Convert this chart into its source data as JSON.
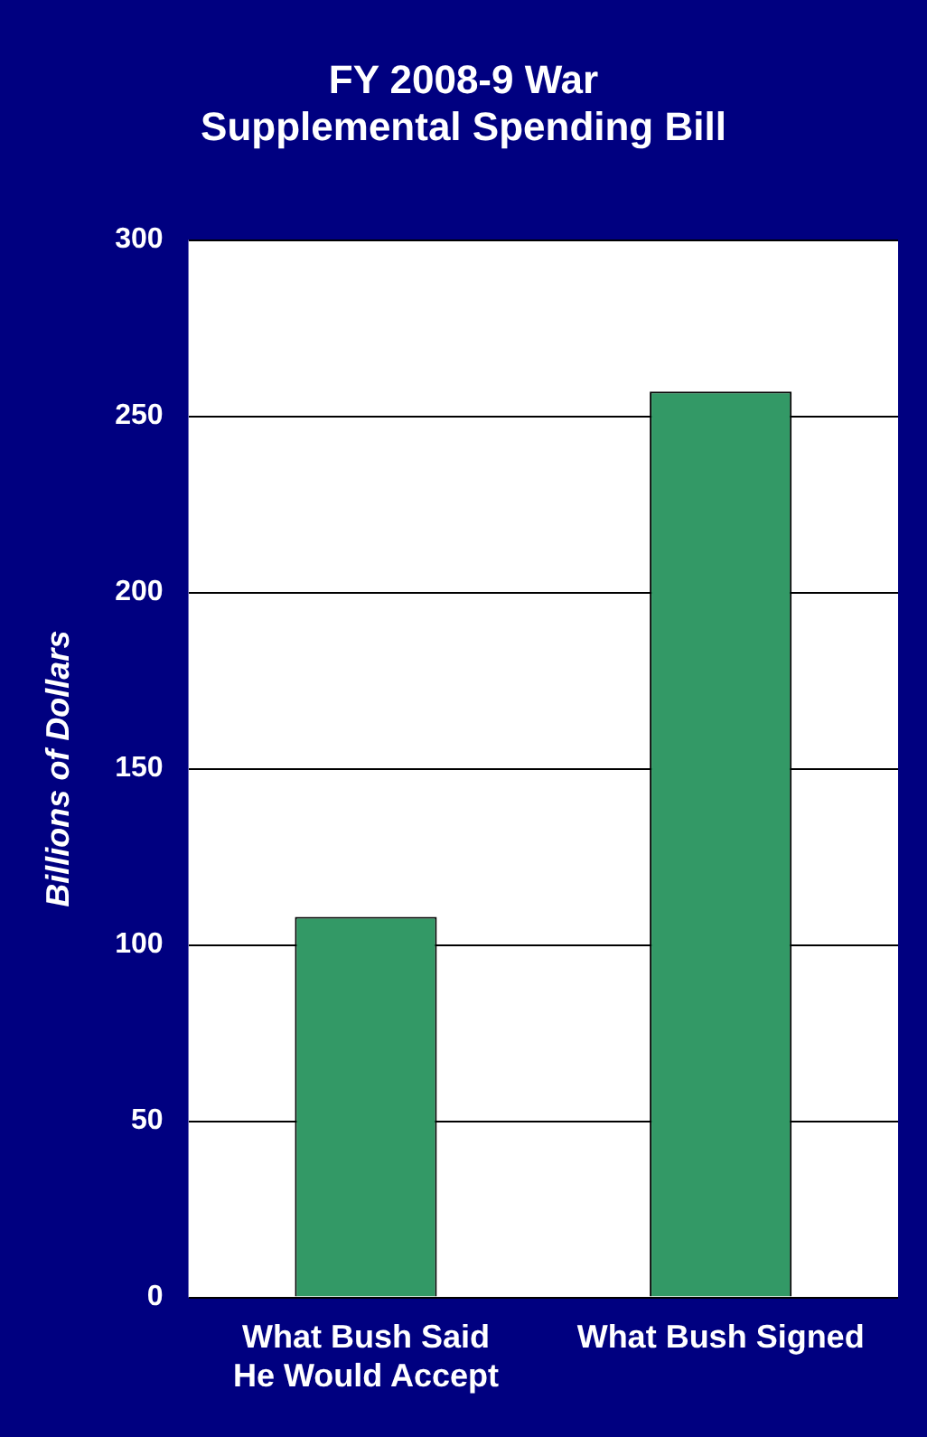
{
  "chart_data": {
    "type": "bar",
    "title": "FY 2008-9 War Supplemental Spending Bill",
    "ylabel": "Billions of Dollars",
    "categories": [
      "What Bush Said He Would Accept",
      "What Bush Signed"
    ],
    "values": [
      108,
      257
    ],
    "color": "#339966",
    "ylim": [
      0,
      300
    ],
    "yticks": [
      0,
      50,
      100,
      150,
      200,
      250,
      300
    ],
    "grid": "y",
    "legend": false
  }
}
